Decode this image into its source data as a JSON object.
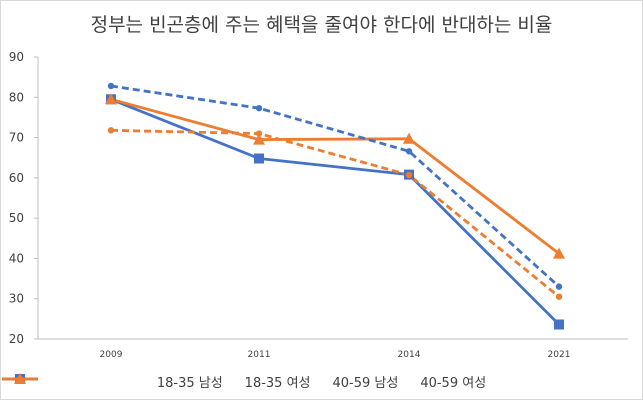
{
  "chart_data": {
    "type": "line",
    "title": "정부는 빈곤층에 주는 혜택을 줄여야 한다에 반대하는 비율",
    "xlabel": "",
    "ylabel": "",
    "x": [
      "2009",
      "2011",
      "2014",
      "2021"
    ],
    "ylim": [
      20,
      90
    ],
    "yticks": [
      20,
      30,
      40,
      50,
      60,
      70,
      80,
      90
    ],
    "grid": false,
    "legend_position": "bottom",
    "series": [
      {
        "name": "18-35 남성",
        "values": [
          79.5,
          64.8,
          60.8,
          23.6
        ],
        "color": "#4472C4",
        "dash": "solid",
        "marker": "square"
      },
      {
        "name": "18-35 여성",
        "values": [
          79.5,
          69.5,
          69.7,
          41.2
        ],
        "color": "#ED7D31",
        "dash": "solid",
        "marker": "triangle"
      },
      {
        "name": "40-59 남성",
        "values": [
          82.8,
          77.3,
          66.6,
          33.0
        ],
        "color": "#4472C4",
        "dash": "dashed",
        "marker": "circle"
      },
      {
        "name": "40-59 여성",
        "values": [
          71.8,
          71.0,
          60.7,
          30.5
        ],
        "color": "#ED7D31",
        "dash": "dashed",
        "marker": "circle"
      }
    ]
  }
}
